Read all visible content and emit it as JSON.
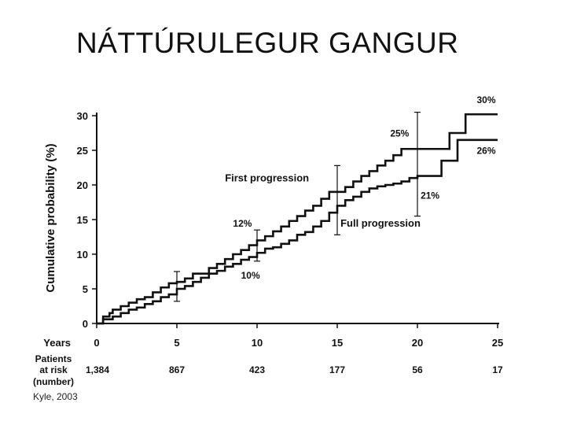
{
  "slide": {
    "title": "NÁTTÚRULEGUR GANGUR",
    "citation": "Kyle, 2003"
  },
  "chart_data": {
    "type": "line",
    "title": "",
    "xlabel": "Years",
    "ylabel": "Cumulative probability (%)",
    "xlim": [
      0,
      25
    ],
    "ylim": [
      0,
      30
    ],
    "x_ticks": [
      0,
      5,
      10,
      15,
      20,
      25
    ],
    "y_ticks": [
      0,
      5,
      10,
      15,
      20,
      25,
      30
    ],
    "grid": false,
    "series": [
      {
        "name": "First progression",
        "color": "#111111",
        "points": [
          [
            0,
            0
          ],
          [
            0.4,
            1
          ],
          [
            0.8,
            1.5
          ],
          [
            1,
            2
          ],
          [
            1.5,
            2.5
          ],
          [
            2,
            3
          ],
          [
            2.5,
            3.5
          ],
          [
            3,
            3.8
          ],
          [
            3.5,
            4.5
          ],
          [
            4,
            5.2
          ],
          [
            4.5,
            5.8
          ],
          [
            5,
            6
          ],
          [
            5.5,
            6.5
          ],
          [
            6,
            7.2
          ],
          [
            7,
            8
          ],
          [
            7.5,
            8.6
          ],
          [
            8,
            9.3
          ],
          [
            8.5,
            10
          ],
          [
            9,
            10.6
          ],
          [
            9.5,
            11.3
          ],
          [
            10,
            12
          ],
          [
            10.5,
            12.6
          ],
          [
            11,
            13.3
          ],
          [
            11.5,
            14
          ],
          [
            12,
            14.8
          ],
          [
            12.5,
            15.5
          ],
          [
            13,
            16.3
          ],
          [
            13.5,
            17
          ],
          [
            14,
            18
          ],
          [
            14.5,
            19
          ],
          [
            15,
            19
          ],
          [
            15.5,
            19.7
          ],
          [
            16,
            20.5
          ],
          [
            16.5,
            21.3
          ],
          [
            17,
            22
          ],
          [
            17.5,
            22.8
          ],
          [
            18,
            23.5
          ],
          [
            18.5,
            24.3
          ],
          [
            19,
            25.2
          ],
          [
            20,
            25.2
          ],
          [
            20.5,
            25.2
          ],
          [
            21,
            25.2
          ],
          [
            21.5,
            25.2
          ],
          [
            22,
            27.5
          ],
          [
            22.5,
            27.5
          ],
          [
            23,
            30.2
          ],
          [
            25,
            30.2
          ]
        ]
      },
      {
        "name": "Full progression",
        "color": "#111111",
        "points": [
          [
            0,
            0
          ],
          [
            0.4,
            0.6
          ],
          [
            1,
            1
          ],
          [
            1.5,
            1.5
          ],
          [
            2,
            2
          ],
          [
            2.5,
            2.3
          ],
          [
            3,
            2.8
          ],
          [
            3.5,
            3.2
          ],
          [
            4,
            3.8
          ],
          [
            4.5,
            4.2
          ],
          [
            5,
            5
          ],
          [
            5.5,
            5.4
          ],
          [
            6,
            6
          ],
          [
            6.5,
            6.6
          ],
          [
            7,
            7.2
          ],
          [
            7.5,
            7.6
          ],
          [
            8,
            8.2
          ],
          [
            8.5,
            8.6
          ],
          [
            9,
            9.2
          ],
          [
            9.5,
            9.6
          ],
          [
            10,
            10.2
          ],
          [
            10.5,
            10.8
          ],
          [
            11,
            11
          ],
          [
            11.5,
            11.5
          ],
          [
            12,
            12
          ],
          [
            12.5,
            12.8
          ],
          [
            13,
            13.2
          ],
          [
            13.5,
            14
          ],
          [
            14,
            14.8
          ],
          [
            14.5,
            16
          ],
          [
            15,
            17
          ],
          [
            15.5,
            17.8
          ],
          [
            16,
            18.3
          ],
          [
            16.5,
            19
          ],
          [
            17,
            19.5
          ],
          [
            17.5,
            19.8
          ],
          [
            18,
            20
          ],
          [
            18.5,
            20.2
          ],
          [
            19,
            20.5
          ],
          [
            19.5,
            21
          ],
          [
            20,
            21.3
          ],
          [
            20.5,
            21.3
          ],
          [
            21,
            21.3
          ],
          [
            21.5,
            23.5
          ],
          [
            22,
            23.5
          ],
          [
            22.5,
            26.5
          ],
          [
            25,
            26.5
          ]
        ]
      }
    ],
    "error_bars": [
      {
        "x": 5,
        "low": 3.2,
        "high": 7.5
      },
      {
        "x": 10,
        "low": 9,
        "high": 13.5
      },
      {
        "x": 15,
        "low": 12.8,
        "high": 22.8
      },
      {
        "x": 20,
        "low": 15.5,
        "high": 30.5
      }
    ],
    "annotations": [
      {
        "text": "First progression",
        "x": 8,
        "y": 20.5
      },
      {
        "text": "Full progression",
        "x": 15.2,
        "y": 14
      },
      {
        "text": "12%",
        "x": 8.5,
        "y": 14
      },
      {
        "text": "10%",
        "x": 9,
        "y": 6.5
      },
      {
        "text": "25%",
        "x": 18.3,
        "y": 27
      },
      {
        "text": "21%",
        "x": 20.2,
        "y": 18
      },
      {
        "text": "30%",
        "x": 23.7,
        "y": 31.8
      },
      {
        "text": "26%",
        "x": 23.7,
        "y": 24.5
      }
    ],
    "risk_table": {
      "label": "Patients\nat risk\n(number)",
      "values": [
        "1,384",
        "867",
        "423",
        "177",
        "56",
        "17"
      ]
    }
  }
}
